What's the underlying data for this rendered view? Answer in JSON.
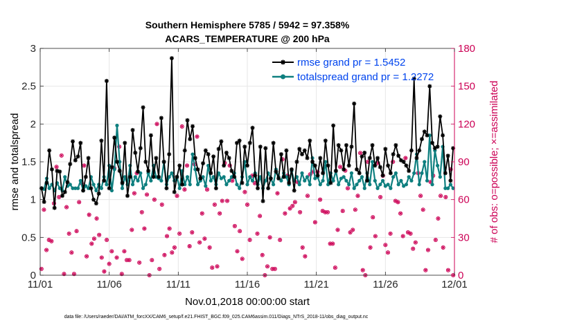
{
  "colors": {
    "rmse": "#000000",
    "spread": "#0e7f7f",
    "obs": "#cc0055",
    "legend_text": "#0044ee",
    "grid": "#e6e6e6"
  },
  "chart_data": {
    "type": "line",
    "title": "Southern Hemisphere 5785 / 5942 = 97.358%",
    "subtitle": "ACARS_TEMPERATURE @ 200 hPa",
    "xlabel": "Nov.01,2018 00:00:00 start",
    "ylabel_left": "rmse and totalspread",
    "ylabel_right": "# of obs: o=possible; ×=assimilated",
    "ylim_left": [
      0,
      3
    ],
    "ylim_right": [
      0,
      180
    ],
    "xlim": [
      0,
      30
    ],
    "xticks": [
      0,
      5,
      10,
      15,
      20,
      25,
      30
    ],
    "xtick_labels": [
      "11/01",
      "11/06",
      "11/11",
      "11/16",
      "11/21",
      "11/26",
      "12/01"
    ],
    "yticks_left": [
      0,
      0.5,
      1,
      1.5,
      2,
      2.5,
      3
    ],
    "ytick_labels_left": [
      "0",
      "0.5",
      "1",
      "1.5",
      "2",
      "2.5",
      "3"
    ],
    "yticks_right": [
      0,
      30,
      60,
      90,
      120,
      150,
      180
    ],
    "ytick_labels_right": [
      "0",
      "30",
      "60",
      "90",
      "120",
      "150",
      "180"
    ],
    "grid": true,
    "legend_position": "top-right",
    "series": [
      {
        "name": "rmse grand pr = 1.5452",
        "axis": "left",
        "values": [
          1.15,
          0.97,
          1.22,
          1.65,
          1.4,
          0.89,
          1.38,
          1.37,
          1.05,
          1.1,
          1.23,
          1.47,
          1.77,
          1.52,
          1.57,
          1.75,
          1.12,
          1.3,
          1.55,
          1.15,
          1.0,
          0.95,
          1.08,
          1.78,
          1.25,
          2.57,
          1.15,
          1.43,
          1.82,
          1.5,
          1.38,
          1.22,
          1.75,
          1.05,
          1.3,
          1.92,
          1.62,
          1.37,
          1.68,
          2.22,
          1.5,
          1.38,
          1.85,
          1.3,
          1.55,
          1.3,
          2.08,
          1.5,
          1.15,
          1.6,
          2.87,
          1.1,
          1.3,
          1.45,
          1.2,
          1.65,
          2.05,
          1.8,
          1.97,
          1.55,
          1.4,
          1.28,
          1.48,
          1.65,
          1.6,
          1.35,
          1.57,
          1.15,
          1.67,
          1.77,
          1.45,
          1.62,
          1.55,
          1.38,
          1.3,
          1.75,
          1.78,
          1.22,
          1.7,
          1.45,
          1.75,
          1.95,
          1.32,
          1.15,
          1.7,
          0.98,
          1.68,
          1.15,
          1.28,
          1.75,
          1.37,
          1.28,
          1.6,
          1.3,
          1.65,
          1.22,
          1.4,
          1.12,
          1.5,
          1.67,
          1.6,
          1.65,
          1.55,
          1.78,
          1.5,
          1.45,
          1.32,
          1.55,
          1.35,
          1.78,
          1.45,
          1.22,
          1.98,
          1.38,
          1.72,
          1.65,
          1.4,
          1.72,
          1.45,
          1.7,
          2.27,
          1.4,
          1.35,
          1.57,
          1.62,
          1.25,
          1.55,
          1.72,
          1.45,
          1.55,
          1.43,
          1.32,
          1.67,
          1.45,
          1.35,
          1.6,
          1.72,
          1.58,
          1.52,
          1.5,
          1.45,
          1.38,
          1.65,
          2.6,
          1.55,
          1.65,
          1.8,
          1.9,
          1.85,
          2.5,
          1.75,
          1.68,
          1.7,
          2.1,
          1.85,
          1.35,
          1.58,
          1.25,
          1.68
        ]
      },
      {
        "name": "totalspread grand pr = 1.2272",
        "axis": "left",
        "values": [
          1.15,
          1.14,
          1.28,
          1.15,
          1.2,
          1.12,
          1.22,
          1.15,
          1.12,
          1.3,
          1.18,
          1.2,
          1.15,
          1.15,
          1.15,
          1.25,
          1.12,
          1.18,
          1.15,
          1.3,
          1.2,
          1.12,
          1.2,
          1.15,
          1.3,
          1.2,
          1.45,
          1.12,
          1.4,
          1.98,
          1.5,
          1.15,
          1.3,
          1.2,
          1.45,
          1.2,
          1.3,
          1.25,
          1.35,
          1.15,
          1.2,
          1.35,
          1.25,
          1.45,
          1.3,
          1.28,
          1.25,
          1.5,
          1.2,
          1.3,
          1.35,
          1.25,
          1.3,
          1.15,
          1.38,
          1.2,
          1.3,
          1.2,
          1.6,
          1.4,
          1.2,
          1.25,
          1.3,
          1.18,
          1.45,
          1.25,
          1.3,
          1.2,
          1.35,
          1.28,
          1.3,
          1.2,
          1.25,
          1.3,
          1.35,
          1.2,
          1.15,
          1.3,
          1.5,
          1.2,
          1.3,
          1.25,
          1.35,
          1.2,
          1.3,
          1.15,
          1.25,
          1.35,
          1.28,
          1.2,
          1.4,
          1.3,
          1.25,
          1.35,
          1.3,
          1.2,
          1.38,
          1.25,
          1.3,
          1.2,
          1.35,
          1.25,
          1.3,
          1.2,
          1.55,
          1.28,
          1.3,
          1.2,
          1.25,
          1.5,
          1.2,
          1.35,
          1.25,
          1.38,
          1.2,
          1.28,
          1.3,
          1.25,
          1.2,
          1.35,
          1.15,
          1.2,
          1.25,
          1.3,
          1.15,
          1.35,
          1.2,
          1.5,
          1.25,
          1.15,
          1.2,
          1.25,
          1.18,
          1.2,
          1.15,
          1.3,
          1.35,
          1.2,
          1.25,
          1.18,
          1.2,
          1.3,
          1.25,
          1.35,
          1.6,
          1.2,
          1.35,
          1.5,
          1.25,
          1.85,
          1.2,
          1.65,
          1.45,
          1.3,
          1.7,
          1.15,
          1.15,
          1.2,
          1.15
        ]
      }
    ],
    "obs_possible_per_day": [
      5,
      52,
      20,
      28,
      27,
      57,
      86,
      62,
      95,
      1,
      54,
      33,
      18,
      1,
      35,
      58,
      73,
      87,
      15,
      48,
      25,
      29,
      45,
      32,
      14,
      3,
      28,
      9,
      19,
      85,
      14,
      102,
      1,
      19,
      12,
      12,
      36,
      65,
      81,
      10,
      50,
      37,
      64,
      0,
      12,
      60,
      120,
      5,
      56,
      16,
      31,
      37,
      18,
      22,
      63,
      33,
      118,
      68,
      87,
      23,
      34,
      88,
      110,
      26,
      49,
      29,
      68,
      22,
      6,
      56,
      7,
      49,
      59,
      89,
      59,
      87,
      75,
      39,
      19,
      35,
      13,
      66,
      56,
      28,
      79,
      73,
      33,
      47,
      16,
      0,
      7,
      30,
      5,
      5,
      65,
      28,
      92,
      49,
      79,
      53,
      55,
      58,
      74,
      50,
      22,
      15,
      63,
      80,
      82,
      42,
      82,
      60,
      51,
      50,
      50,
      25,
      25,
      6,
      36,
      86,
      51,
      83,
      69,
      34,
      36,
      52,
      63,
      97,
      4,
      0,
      90,
      22,
      46,
      31,
      89,
      62,
      79,
      24,
      18,
      33,
      90,
      59,
      58,
      49,
      31,
      93,
      34,
      33,
      21,
      26,
      81,
      63,
      52,
      4,
      20,
      74,
      79,
      28,
      45,
      63,
      22,
      62,
      4,
      84,
      0
    ]
  }
}
